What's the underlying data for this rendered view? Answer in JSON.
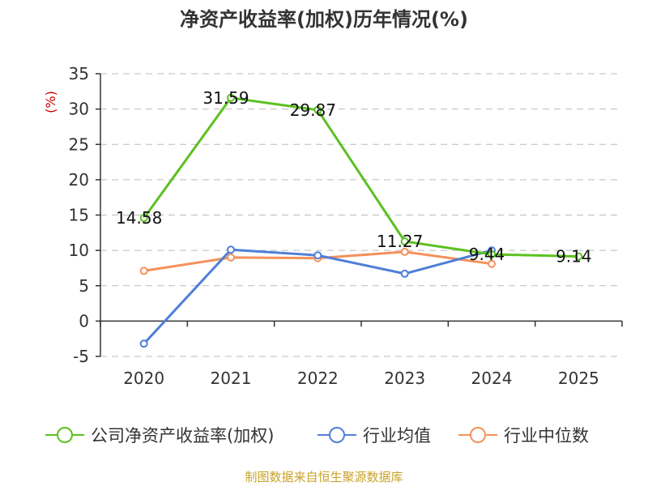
{
  "chart_data": {
    "type": "line",
    "title": "净资产收益率(加权)历年情况(%)",
    "ylabel": "(%)",
    "categories": [
      "2020",
      "2021",
      "2022",
      "2023",
      "2024",
      "2025"
    ],
    "ylim": [
      -5,
      35
    ],
    "yticks": [
      -5,
      0,
      5,
      10,
      15,
      20,
      25,
      30,
      35
    ],
    "grid": true,
    "legend_position": "bottom",
    "series": [
      {
        "name": "公司净资产收益率(加权)",
        "color": "#5bc120",
        "values": [
          14.58,
          31.59,
          29.87,
          11.27,
          9.44,
          9.14
        ],
        "labels": [
          "14.58",
          "31.59",
          "29.87",
          "11.27",
          "9.44",
          "9.14"
        ]
      },
      {
        "name": "行业均值",
        "color": "#4f7fd9",
        "values": [
          -3.2,
          10.1,
          9.3,
          6.7,
          10.0,
          null
        ]
      },
      {
        "name": "行业中位数",
        "color": "#f5905a",
        "values": [
          7.1,
          9.0,
          8.9,
          9.8,
          8.1,
          null
        ]
      }
    ]
  },
  "source": "制图数据来自恒生聚源数据库"
}
